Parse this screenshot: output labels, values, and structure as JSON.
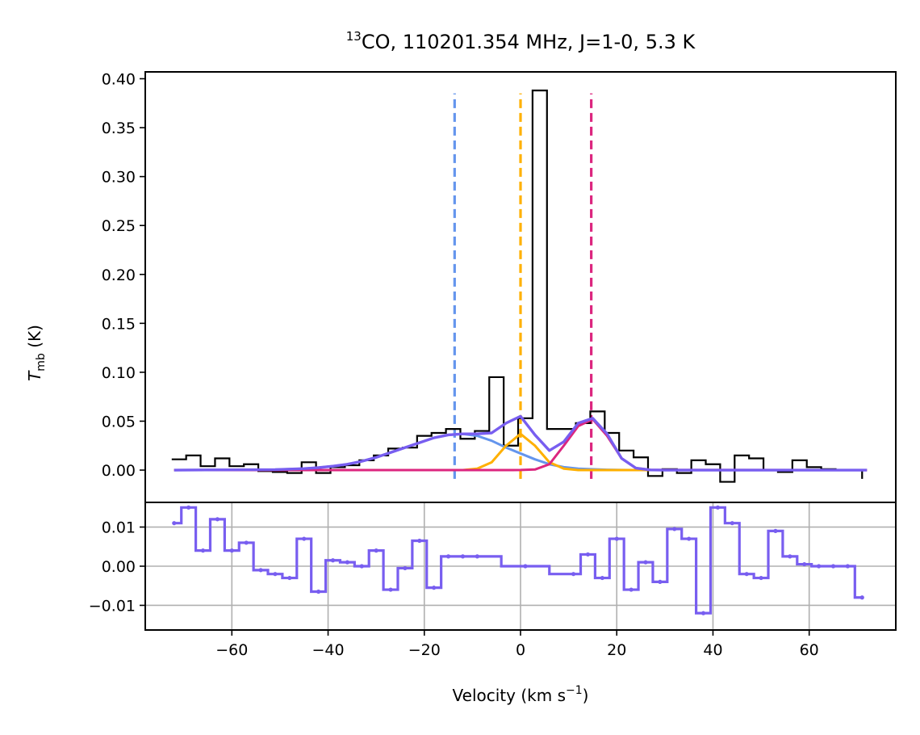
{
  "chart_data": [
    {
      "panel": "spectrum",
      "type": "line",
      "title": {
        "prefix": "13",
        "main": "CO, 110201.354 MHz, J=1-0, 5.3 K"
      },
      "ylabel": {
        "main": "T",
        "sub": "mb",
        "unit": " (K)"
      },
      "xlim": [
        -78,
        78
      ],
      "ylim": [
        -0.033,
        0.407
      ],
      "yticks": [
        0.0,
        0.05,
        0.1,
        0.15,
        0.2,
        0.25,
        0.3,
        0.35,
        0.4
      ],
      "ytick_labels": [
        "0.00",
        "0.05",
        "0.10",
        "0.15",
        "0.20",
        "0.25",
        "0.30",
        "0.35",
        "0.40"
      ],
      "step_edges": [
        -72.5,
        -69.5,
        -66.5,
        -63.5,
        -60.5,
        -57.5,
        -54.5,
        -51.5,
        -48.5,
        -45.5,
        -42.5,
        -39.5,
        -36.5,
        -33.5,
        -30.5,
        -27.5,
        -24.5,
        -21.5,
        -18.5,
        -15.5,
        -12.5,
        -9.5,
        -6.5,
        -3.5,
        -0.5,
        2.5,
        5.5,
        8.5,
        11.5,
        14.5,
        17.5,
        20.5,
        23.5,
        26.5,
        29.5,
        32.5,
        35.5,
        38.5,
        41.5,
        44.5,
        47.5,
        50.5,
        53.5,
        56.5,
        59.5,
        62.5,
        65.5,
        68.5,
        71.0
      ],
      "series": [
        {
          "name": "observed spectrum",
          "style": "step",
          "color": "#000000",
          "values": [
            0.011,
            0.015,
            0.004,
            0.012,
            0.004,
            0.006,
            -0.001,
            -0.002,
            -0.003,
            0.008,
            -0.003,
            0.003,
            0.005,
            0.01,
            0.015,
            0.022,
            0.023,
            0.035,
            0.038,
            0.042,
            0.032,
            0.04,
            0.095,
            0.025,
            0.053,
            0.388,
            0.042,
            0.042,
            0.048,
            0.06,
            0.038,
            0.02,
            0.013,
            -0.006,
            0.001,
            -0.003,
            0.01,
            0.006,
            -0.012,
            0.015,
            0.012,
            0.0,
            -0.002,
            0.01,
            0.003,
            0.001,
            0.0,
            0.0
          ]
        },
        {
          "name": "component 1 (blue)",
          "style": "line",
          "color": "#6495ed",
          "x": [
            -72,
            -51,
            -45,
            -42,
            -39,
            -36,
            -33,
            -30,
            -27,
            -24,
            -21,
            -18,
            -15,
            -12,
            -9,
            -6,
            -3,
            0,
            3,
            6,
            9,
            12,
            15,
            18,
            21,
            24,
            27,
            30,
            33,
            36,
            42,
            51,
            72
          ],
          "values": [
            0.0,
            0.0005,
            0.0015,
            0.0025,
            0.004,
            0.006,
            0.009,
            0.013,
            0.018,
            0.023,
            0.028,
            0.033,
            0.036,
            0.037,
            0.035,
            0.03,
            0.023,
            0.017,
            0.011,
            0.006,
            0.003,
            0.0015,
            0.0008,
            0.0003,
            0.0001,
            0.0,
            0.0,
            0.0,
            0.0,
            0.0,
            0.0,
            0.0,
            0.0
          ]
        },
        {
          "name": "component 2 (orange)",
          "style": "line",
          "color": "#ffb000",
          "x": [
            -72,
            -12,
            -9,
            -6,
            -3,
            0,
            3,
            6,
            9,
            12,
            15,
            72
          ],
          "values": [
            0.0,
            0.0,
            0.0015,
            0.008,
            0.025,
            0.037,
            0.025,
            0.008,
            0.0015,
            0.0,
            0.0,
            0.0
          ]
        },
        {
          "name": "component 3 (magenta)",
          "style": "line",
          "color": "#dc267f",
          "x": [
            -72,
            -3,
            0,
            3,
            6,
            9,
            12,
            15,
            18,
            21,
            24,
            27,
            72
          ],
          "values": [
            0.0,
            0.0,
            0.0001,
            0.0006,
            0.006,
            0.025,
            0.045,
            0.052,
            0.035,
            0.012,
            0.002,
            0.0002,
            0.0
          ]
        },
        {
          "name": "total fit (purple)",
          "style": "line",
          "color": "#785ef0",
          "x": [
            -72,
            -51,
            -45,
            -42,
            -39,
            -36,
            -33,
            -30,
            -27,
            -24,
            -21,
            -18,
            -15,
            -12,
            -9,
            -6,
            -3,
            0,
            3,
            6,
            9,
            12,
            15,
            18,
            21,
            24,
            27,
            30,
            33,
            36,
            42,
            51,
            72
          ],
          "values": [
            0.0,
            0.0005,
            0.0015,
            0.0025,
            0.004,
            0.006,
            0.009,
            0.013,
            0.018,
            0.023,
            0.028,
            0.033,
            0.036,
            0.037,
            0.037,
            0.038,
            0.048,
            0.055,
            0.036,
            0.02,
            0.029,
            0.048,
            0.053,
            0.037,
            0.012,
            0.002,
            0.0002,
            0.0,
            0.0,
            0.0,
            0.0,
            0.0,
            0.0
          ]
        }
      ],
      "vlines": [
        {
          "x": -13.7,
          "color": "#6495ed"
        },
        {
          "x": 0.0,
          "color": "#ffb000"
        },
        {
          "x": 14.7,
          "color": "#dc267f"
        }
      ],
      "vline_range": [
        -0.009,
        0.385
      ]
    },
    {
      "panel": "residuals",
      "type": "line",
      "xlabel": {
        "main": "Velocity (km s",
        "sup": "−1",
        "close": ")"
      },
      "xlim": [
        -78,
        78
      ],
      "ylim": [
        -0.0163,
        0.0163
      ],
      "xticks": [
        -60,
        -40,
        -20,
        0,
        20,
        40,
        60
      ],
      "xtick_labels": [
        "−60",
        "−40",
        "−20",
        "0",
        "20",
        "40",
        "60"
      ],
      "yticks": [
        -0.01,
        0.0,
        0.01
      ],
      "ytick_labels": [
        "−0.01",
        "0.00",
        "0.01"
      ],
      "grid": true,
      "color": "#785ef0",
      "x": [
        -72,
        -69,
        -66,
        -63,
        -60,
        -57,
        -54,
        -51,
        -48,
        -45,
        -42,
        -39,
        -36,
        -33,
        -30,
        -27,
        -24,
        -21,
        -18,
        -15,
        -12,
        -9,
        1,
        11,
        14,
        17,
        20,
        23,
        26,
        29,
        32,
        35,
        38,
        41,
        44,
        47,
        50,
        53,
        56,
        59,
        62,
        65,
        68,
        71
      ],
      "values": [
        0.011,
        0.015,
        0.004,
        0.012,
        0.004,
        0.006,
        -0.001,
        -0.002,
        -0.003,
        0.007,
        -0.0065,
        0.0015,
        0.001,
        0.0,
        0.004,
        -0.006,
        -0.0005,
        0.0065,
        -0.0055,
        0.0025,
        0.0025,
        0.0025,
        0.0,
        -0.002,
        0.003,
        -0.003,
        0.007,
        -0.006,
        0.001,
        -0.004,
        0.0095,
        0.007,
        -0.012,
        0.015,
        0.011,
        -0.002,
        -0.003,
        0.009,
        0.0025,
        0.0005,
        0.0,
        0.0,
        0.0,
        -0.008
      ]
    }
  ]
}
